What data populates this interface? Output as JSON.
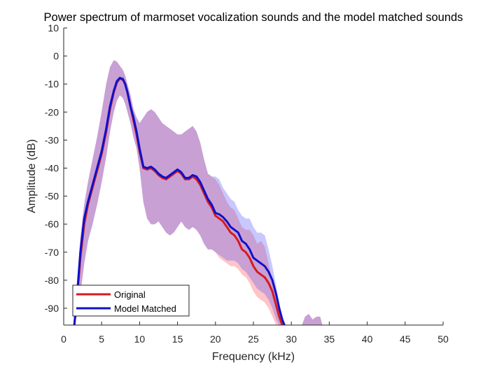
{
  "chart_data": {
    "type": "line",
    "title": "Power spectrum of marmoset vocalization sounds and the model matched sounds",
    "xlabel": "Frequency (kHz)",
    "ylabel": "Amplitude (dB)",
    "xlim": [
      0,
      50
    ],
    "ylim": [
      -96,
      10
    ],
    "xticks": [
      "0",
      "5",
      "10",
      "15",
      "20",
      "25",
      "30",
      "35",
      "40",
      "45",
      "50"
    ],
    "yticks": [
      "10",
      "0",
      "-10",
      "-20",
      "-30",
      "-40",
      "-50",
      "-60",
      "-70",
      "-80",
      "-90"
    ],
    "grid": false,
    "legend_position": "bottom-left",
    "band_overlap_color": "#c8a0d4",
    "series": [
      {
        "name": "Original",
        "color": "#d7191c",
        "band_color": "#ffc4c8",
        "x": [
          1.4,
          1.8,
          2.2,
          2.7,
          3.2,
          3.8,
          4.4,
          5.0,
          5.6,
          6.1,
          6.6,
          7.0,
          7.4,
          7.8,
          8.1,
          8.4,
          8.8,
          9.2,
          9.6,
          10.0,
          10.5,
          11.0,
          11.5,
          12.0,
          12.5,
          13.0,
          13.5,
          14.0,
          14.5,
          15.0,
          15.5,
          16.0,
          16.5,
          17.0,
          17.5,
          18.0,
          18.5,
          19.0,
          19.5,
          20.0,
          20.5,
          21.0,
          21.5,
          22.0,
          22.5,
          23.0,
          23.5,
          24.0,
          24.5,
          25.0,
          25.5,
          26.0,
          26.5,
          27.0,
          27.5,
          28.0,
          28.4,
          28.8
        ],
        "y": [
          -96,
          -85,
          -72,
          -60,
          -53,
          -47,
          -41,
          -35,
          -27,
          -19,
          -13,
          -9.5,
          -8,
          -8.5,
          -10,
          -13,
          -18,
          -23,
          -28,
          -34,
          -40,
          -40.5,
          -40,
          -41,
          -42.5,
          -43.5,
          -44,
          -43,
          -42,
          -41,
          -42,
          -44,
          -44,
          -43,
          -44,
          -46,
          -49,
          -52,
          -54,
          -57,
          -58,
          -59,
          -61,
          -63,
          -64,
          -66,
          -69,
          -70,
          -72,
          -75,
          -77,
          -78,
          -79,
          -81,
          -84,
          -89,
          -93,
          -96
        ],
        "upper": [
          -96,
          -80,
          -65,
          -53,
          -45,
          -37,
          -29,
          -20,
          -10,
          -4,
          -1.5,
          -2,
          -3.5,
          -5,
          -7,
          -10,
          -14,
          -19,
          -22,
          -24,
          -22,
          -20,
          -19,
          -20,
          -22,
          -24,
          -25,
          -26,
          -27,
          -28,
          -28,
          -27,
          -26,
          -25,
          -27,
          -31,
          -37,
          -42,
          -43,
          -44,
          -46,
          -49,
          -52,
          -54,
          -55,
          -58,
          -61,
          -62,
          -62,
          -64,
          -67,
          -66,
          -68,
          -74,
          -80,
          -86,
          -91,
          -96
        ],
        "lower": [
          -96,
          -92,
          -85,
          -74,
          -66,
          -60,
          -53,
          -45,
          -36,
          -27,
          -20,
          -16,
          -14,
          -15,
          -17,
          -20,
          -24,
          -29,
          -33,
          -40,
          -52,
          -58,
          -60,
          -60,
          -59,
          -61,
          -63,
          -64,
          -63,
          -61,
          -59,
          -61,
          -62,
          -61,
          -62,
          -64,
          -67,
          -69,
          -69,
          -70,
          -72,
          -73,
          -74,
          -75,
          -75,
          -76,
          -78,
          -79,
          -81,
          -84,
          -86,
          -87,
          -88,
          -90,
          -93,
          -96,
          -96,
          -96
        ]
      },
      {
        "name": "Model Matched",
        "color": "#1010c8",
        "band_color": "#c8c8ff",
        "x": [
          1.4,
          1.8,
          2.2,
          2.7,
          3.2,
          3.8,
          4.4,
          5.0,
          5.6,
          6.1,
          6.6,
          7.0,
          7.4,
          7.8,
          8.1,
          8.4,
          8.8,
          9.2,
          9.6,
          10.0,
          10.5,
          11.0,
          11.5,
          12.0,
          12.5,
          13.0,
          13.5,
          14.0,
          14.5,
          15.0,
          15.5,
          16.0,
          16.5,
          17.0,
          17.5,
          18.0,
          18.5,
          19.0,
          19.5,
          20.0,
          20.5,
          21.0,
          21.5,
          22.0,
          22.5,
          23.0,
          23.5,
          24.0,
          24.5,
          25.0,
          25.5,
          26.0,
          26.5,
          27.0,
          27.5,
          28.0,
          28.4,
          28.8,
          29.1
        ],
        "y": [
          -96,
          -84,
          -70,
          -58,
          -52,
          -46,
          -40,
          -34,
          -26,
          -18,
          -12.5,
          -9,
          -7.8,
          -8.2,
          -10,
          -13,
          -18,
          -22,
          -27,
          -33,
          -39.5,
          -40,
          -39.5,
          -40.5,
          -42,
          -43,
          -43.5,
          -42.5,
          -41.5,
          -40.5,
          -41.5,
          -43.5,
          -43.5,
          -42.5,
          -43,
          -45,
          -48,
          -51,
          -53,
          -56,
          -56.5,
          -57.5,
          -59,
          -61,
          -62,
          -63,
          -66,
          -67,
          -69,
          -72,
          -73,
          -74,
          -75,
          -77,
          -80,
          -85,
          -90,
          -94,
          -96
        ],
        "upper": [
          -96,
          -80,
          -65,
          -53,
          -45,
          -37,
          -29,
          -20,
          -10,
          -4,
          -1.5,
          -2,
          -3.5,
          -5,
          -7,
          -10,
          -14,
          -19,
          -22,
          -24,
          -22,
          -20,
          -19,
          -20,
          -22,
          -24,
          -25,
          -26,
          -27,
          -28,
          -28,
          -27,
          -26,
          -25,
          -27,
          -31,
          -37,
          -42,
          -43,
          -43,
          -44,
          -47,
          -49,
          -51,
          -52,
          -55,
          -57,
          -58,
          -58,
          -61,
          -63,
          -63,
          -64,
          -69,
          -75,
          -82,
          -88,
          -93,
          -96
        ],
        "lower": [
          -96,
          -92,
          -85,
          -74,
          -66,
          -60,
          -53,
          -45,
          -36,
          -27,
          -20,
          -16,
          -14,
          -15,
          -17,
          -20,
          -24,
          -29,
          -33,
          -40,
          -52,
          -58,
          -60,
          -60,
          -59,
          -61,
          -63,
          -64,
          -63,
          -61,
          -59,
          -61,
          -62,
          -61,
          -62,
          -64,
          -67,
          -69,
          -69,
          -70,
          -71,
          -72,
          -73,
          -73,
          -73,
          -74,
          -76,
          -77,
          -79,
          -81,
          -83,
          -84,
          -85,
          -87,
          -90,
          -94,
          -96,
          -96,
          -96
        ]
      }
    ],
    "extra_band": {
      "x": [
        31.4,
        31.8,
        32.3,
        32.8,
        33.3,
        33.8,
        34.1
      ],
      "upper": [
        -96,
        -93,
        -92,
        -94,
        -93,
        -93,
        -96
      ],
      "lower": [
        -96,
        -96,
        -96,
        -96,
        -96,
        -96,
        -96
      ]
    }
  }
}
